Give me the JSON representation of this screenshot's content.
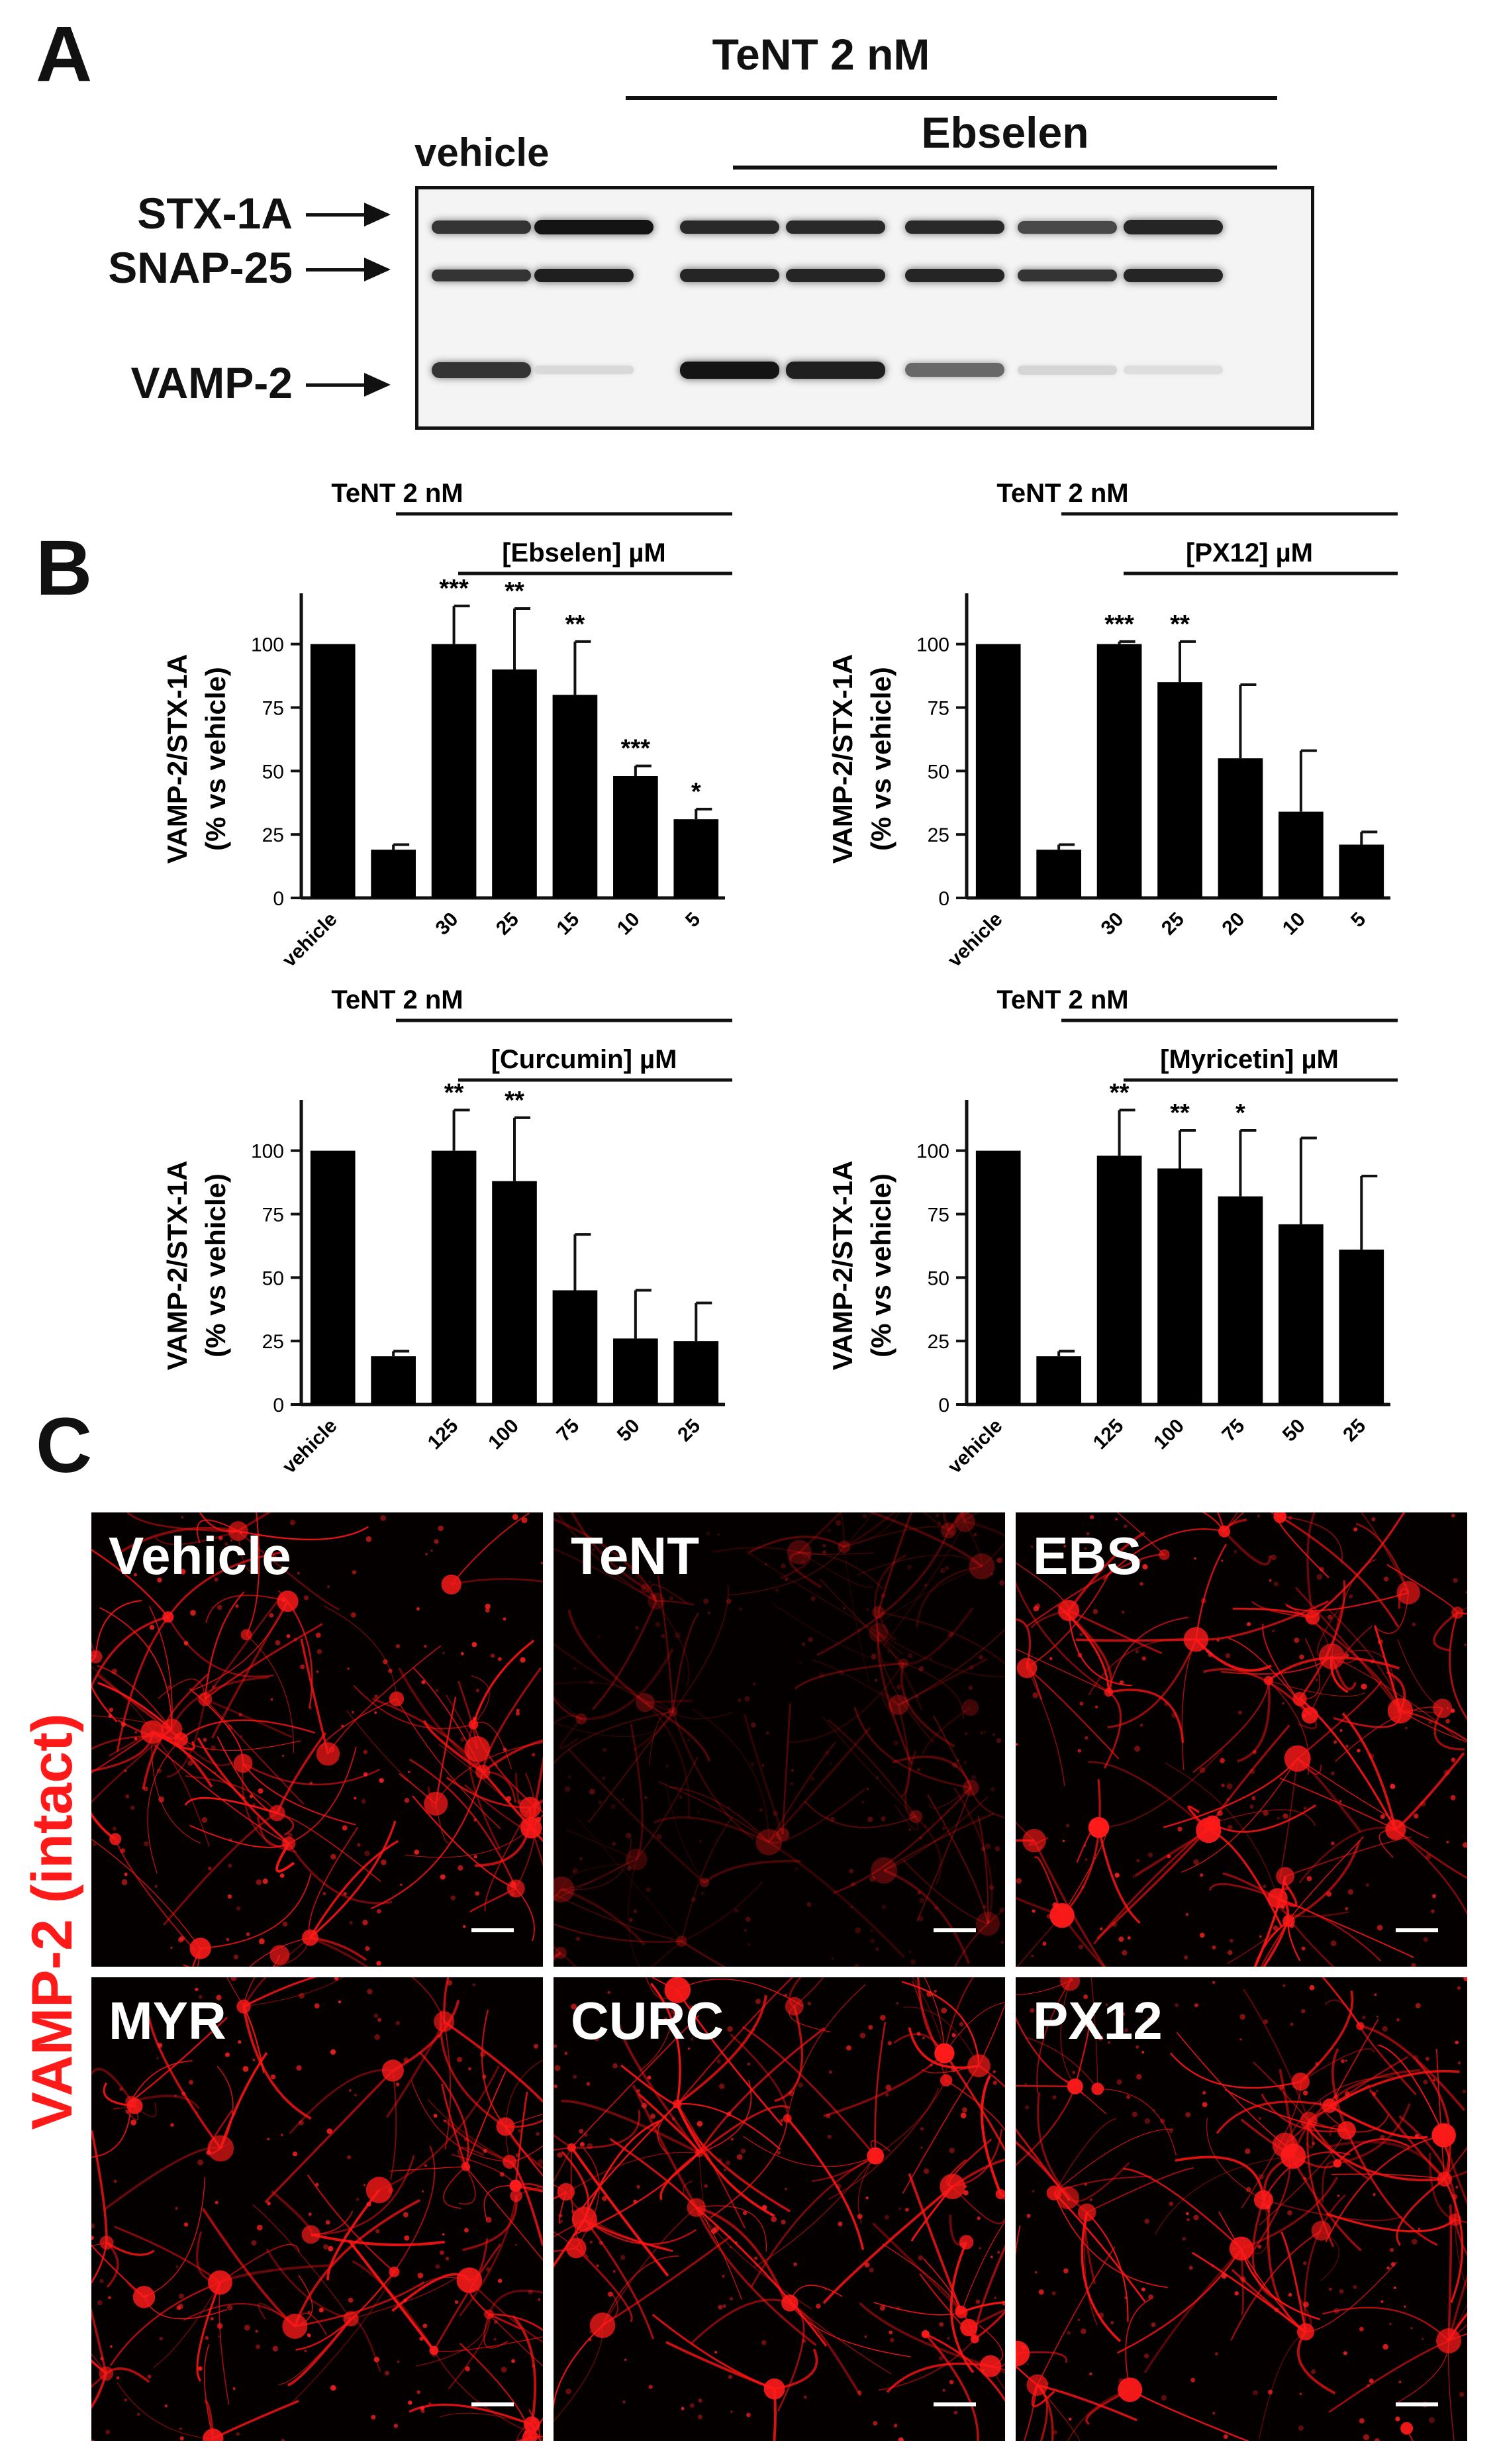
{
  "panel_a": {
    "letter": "A",
    "header_top": "TeNT 2 nM",
    "header_sub": "Ebselen",
    "vehicle_label": "vehicle",
    "band_labels": [
      "STX-1A",
      "SNAP-25",
      "VAMP-2"
    ],
    "lanes": [
      {
        "stx": 0.85,
        "snap": 0.85,
        "vamp": 0.85
      },
      {
        "stx": 1.0,
        "snap": 0.95,
        "vamp": 0.06
      },
      {
        "stx": 0.9,
        "snap": 0.92,
        "vamp": 1.0
      },
      {
        "stx": 0.9,
        "snap": 0.92,
        "vamp": 0.95
      },
      {
        "stx": 0.9,
        "snap": 0.92,
        "vamp": 0.6
      },
      {
        "stx": 0.75,
        "snap": 0.85,
        "vamp": 0.08
      },
      {
        "stx": 0.92,
        "snap": 0.92,
        "vamp": 0.04
      }
    ]
  },
  "panel_b_letter": "B",
  "panel_c_letter": "C",
  "panel_c": {
    "side_label": "VAMP-2 (intact)",
    "images": [
      {
        "label": "Vehicle",
        "brightness": 1.0
      },
      {
        "label": "TeNT",
        "brightness": 0.35
      },
      {
        "label": "EBS",
        "brightness": 1.0
      },
      {
        "label": "MYR",
        "brightness": 1.0
      },
      {
        "label": "CURC",
        "brightness": 1.0
      },
      {
        "label": "PX12",
        "brightness": 1.0
      }
    ]
  },
  "chart_data": [
    {
      "type": "bar",
      "header_top": "TeNT 2 nM",
      "header_sub": "[Ebselen] µM",
      "ylabel_1": "VAMP-2/STX-1A",
      "ylabel_2": "(% vs vehicle)",
      "ylim": [
        0,
        120
      ],
      "yticks": [
        0,
        25,
        50,
        75,
        100
      ],
      "categories": [
        "vehicle",
        "",
        "30",
        "25",
        "15",
        "10",
        "5"
      ],
      "values": [
        100,
        19,
        100,
        90,
        80,
        48,
        31
      ],
      "errors": [
        0,
        2,
        15,
        24,
        21,
        4,
        4
      ],
      "significance": [
        "",
        "",
        "***",
        "**",
        "**",
        "***",
        "*"
      ],
      "bar_color": "#000000"
    },
    {
      "type": "bar",
      "header_top": "TeNT 2 nM",
      "header_sub": "[PX12] µM",
      "ylabel_1": "VAMP-2/STX-1A",
      "ylabel_2": "(% vs vehicle)",
      "ylim": [
        0,
        120
      ],
      "yticks": [
        0,
        25,
        50,
        75,
        100
      ],
      "categories": [
        "vehicle",
        "",
        "30",
        "25",
        "20",
        "10",
        "5"
      ],
      "values": [
        100,
        19,
        100,
        85,
        55,
        34,
        21
      ],
      "errors": [
        0,
        2,
        1,
        16,
        29,
        24,
        5
      ],
      "significance": [
        "",
        "",
        "***",
        "**",
        "",
        "",
        ""
      ],
      "bar_color": "#000000"
    },
    {
      "type": "bar",
      "header_top": "TeNT 2 nM",
      "header_sub": "[Curcumin] µM",
      "ylabel_1": "VAMP-2/STX-1A",
      "ylabel_2": "(% vs vehicle)",
      "ylim": [
        0,
        120
      ],
      "yticks": [
        0,
        25,
        50,
        75,
        100
      ],
      "categories": [
        "vehicle",
        "",
        "125",
        "100",
        "75",
        "50",
        "25"
      ],
      "values": [
        100,
        19,
        100,
        88,
        45,
        26,
        25
      ],
      "errors": [
        0,
        2,
        16,
        25,
        22,
        19,
        15
      ],
      "significance": [
        "",
        "",
        "**",
        "**",
        "",
        "",
        ""
      ],
      "bar_color": "#000000"
    },
    {
      "type": "bar",
      "header_top": "TeNT 2 nM",
      "header_sub": "[Myricetin] µM",
      "ylabel_1": "VAMP-2/STX-1A",
      "ylabel_2": "(% vs vehicle)",
      "ylim": [
        0,
        120
      ],
      "yticks": [
        0,
        25,
        50,
        75,
        100
      ],
      "categories": [
        "vehicle",
        "",
        "125",
        "100",
        "75",
        "50",
        "25"
      ],
      "values": [
        100,
        19,
        98,
        93,
        82,
        71,
        61
      ],
      "errors": [
        0,
        2,
        18,
        15,
        26,
        34,
        29
      ],
      "significance": [
        "",
        "",
        "**",
        "**",
        "*",
        "",
        ""
      ],
      "bar_color": "#000000"
    }
  ]
}
